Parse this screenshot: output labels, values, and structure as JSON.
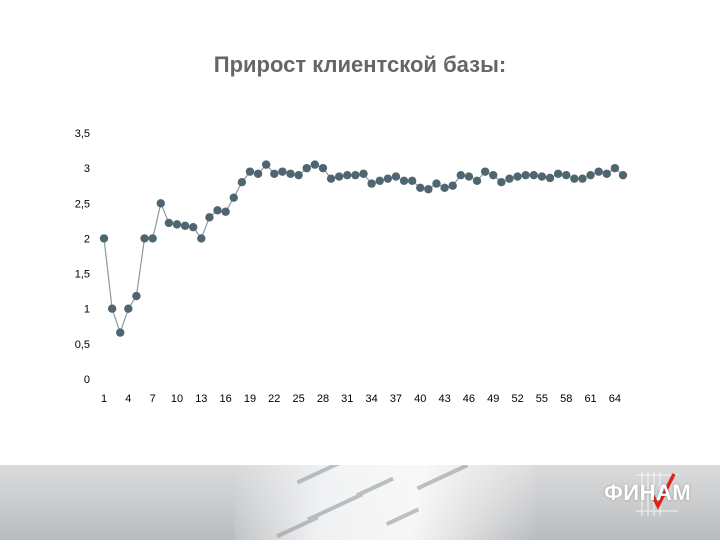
{
  "slide": {
    "title": "Прирост клиентской базы:"
  },
  "logo": {
    "text": "ФИНАМ",
    "accent_color": "#e2231a"
  },
  "colors": {
    "series": "#4f6671",
    "axis": "#000000"
  },
  "chart_data": {
    "type": "line",
    "title": "",
    "xlabel": "",
    "ylabel": "",
    "ylim": [
      0,
      3.5
    ],
    "y_ticks": [
      "0",
      "0,5",
      "1",
      "1,5",
      "2",
      "2,5",
      "3",
      "3,5"
    ],
    "x_tick_labels": [
      "1",
      "4",
      "7",
      "10",
      "13",
      "16",
      "19",
      "22",
      "25",
      "28",
      "31",
      "34",
      "37",
      "40",
      "43",
      "46",
      "49",
      "52",
      "55",
      "58",
      "61",
      "64"
    ],
    "x": [
      1,
      2,
      3,
      4,
      5,
      6,
      7,
      8,
      9,
      10,
      11,
      12,
      13,
      14,
      15,
      16,
      17,
      18,
      19,
      20,
      21,
      22,
      23,
      24,
      25,
      26,
      27,
      28,
      29,
      30,
      31,
      32,
      33,
      34,
      35,
      36,
      37,
      38,
      39,
      40,
      41,
      42,
      43,
      44,
      45,
      46,
      47,
      48,
      49,
      50,
      51,
      52,
      53,
      54,
      55,
      56,
      57,
      58,
      59,
      60,
      61,
      62,
      63,
      64,
      65
    ],
    "values": [
      2.0,
      1.0,
      0.66,
      1.0,
      1.18,
      2.0,
      2.0,
      2.5,
      2.22,
      2.2,
      2.18,
      2.16,
      2.0,
      2.3,
      2.4,
      2.38,
      2.58,
      2.8,
      2.95,
      2.92,
      3.05,
      2.92,
      2.95,
      2.92,
      2.9,
      3.0,
      3.05,
      3.0,
      2.85,
      2.88,
      2.9,
      2.9,
      2.92,
      2.78,
      2.82,
      2.85,
      2.88,
      2.82,
      2.82,
      2.72,
      2.7,
      2.78,
      2.72,
      2.75,
      2.9,
      2.88,
      2.82,
      2.95,
      2.9,
      2.8,
      2.85,
      2.88,
      2.9,
      2.9,
      2.88,
      2.86,
      2.92,
      2.9,
      2.85,
      2.85,
      2.9,
      2.95,
      2.92,
      3.0,
      2.9
    ],
    "grid": false,
    "legend": "none"
  }
}
